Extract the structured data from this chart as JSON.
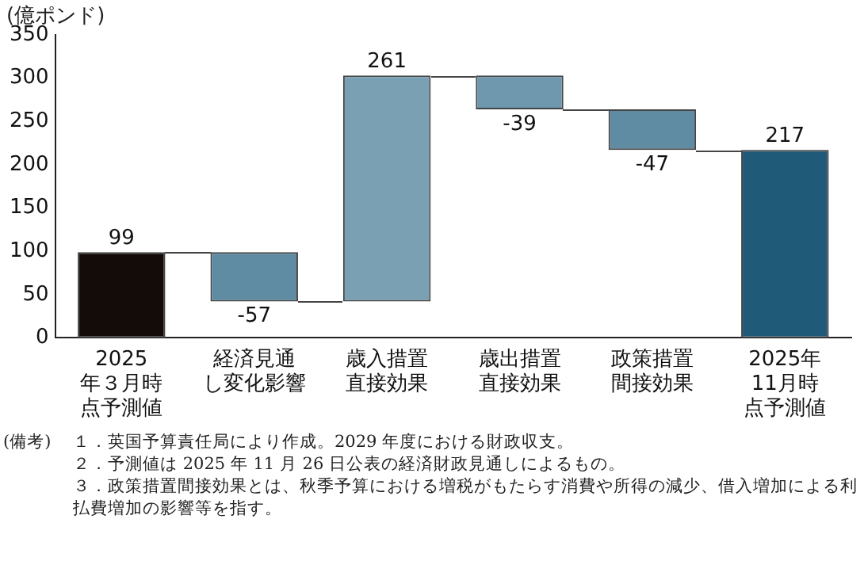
{
  "chart_data": {
    "type": "bar",
    "ylabel": "(億ポンド)",
    "categories": [
      "2025年３月時点予測値",
      "経済見通し変化影響",
      "歳入措置直接効果",
      "歳出措置直接効果",
      "政策措置間接効果",
      "2025年11月時点予測値"
    ],
    "values": [
      99,
      -57,
      261,
      -39,
      -47,
      217
    ],
    "base": [
      0,
      99,
      42,
      303,
      264,
      0
    ],
    "colors": [
      "#140c08",
      "#5f8ba3",
      "#7aa0b4",
      "#6f97ad",
      "#5f8ba3",
      "#1f5a78"
    ],
    "ylim": [
      0,
      350
    ],
    "yticks": [
      0,
      50,
      100,
      150,
      200,
      250,
      300,
      350
    ],
    "data_labels": true,
    "grid": false,
    "legend": false,
    "annotations": [
      "(備考)",
      "１．英国予算責任局により作成。2029 年度における財政収支。",
      "２．予測値は 2025 年 11 月 26 日公表の経済財政見通しによるもの。",
      "３．政策措置間接効果とは、秋季予算における増税がもたらす消費や所得の減少、借入増加による利払費増加の影響等を指す。"
    ]
  }
}
